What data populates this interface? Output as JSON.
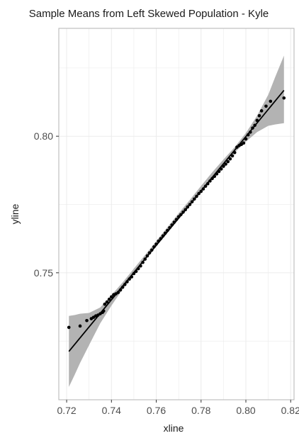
{
  "chart_data": {
    "type": "scatter",
    "title": "Sample Means from Left Skewed Population -  Kyle",
    "xlabel": "xline",
    "ylabel": "yline",
    "xlim": [
      0.7165,
      0.8215
    ],
    "ylim": [
      0.7035,
      0.8395
    ],
    "x_ticks": [
      0.72,
      0.74,
      0.76,
      0.78,
      0.8,
      0.82
    ],
    "x_tick_labels": [
      "0.72",
      "0.74",
      "0.76",
      "0.78",
      "0.80",
      "0.82"
    ],
    "y_ticks": [
      0.75,
      0.8
    ],
    "y_tick_labels": [
      "0.75",
      "0.80"
    ],
    "grid": true,
    "colors": {
      "points": "#000000",
      "fit_line": "#000000",
      "ribbon": "#b3b3b3",
      "grid": "#ebebeb",
      "panel_border": "#b3b3b3"
    },
    "fit_line": {
      "x": [
        0.721,
        0.817
      ],
      "y": [
        0.7212,
        0.8168
      ]
    },
    "ribbon": {
      "x": [
        0.721,
        0.7235,
        0.726,
        0.73,
        0.735,
        0.74,
        0.745,
        0.75,
        0.755,
        0.76,
        0.765,
        0.77,
        0.775,
        0.78,
        0.785,
        0.79,
        0.795,
        0.8,
        0.805,
        0.81,
        0.813,
        0.817
      ],
      "lower": [
        0.7082,
        0.7125,
        0.717,
        0.7235,
        0.7315,
        0.738,
        0.744,
        0.7495,
        0.755,
        0.7602,
        0.7653,
        0.7703,
        0.7752,
        0.7802,
        0.785,
        0.7897,
        0.794,
        0.798,
        0.8015,
        0.8038,
        0.8043,
        0.8048
      ],
      "upper": [
        0.7342,
        0.7345,
        0.735,
        0.7353,
        0.7373,
        0.7418,
        0.7465,
        0.7515,
        0.7565,
        0.7616,
        0.7667,
        0.7718,
        0.7767,
        0.7818,
        0.7868,
        0.7915,
        0.796,
        0.8012,
        0.8075,
        0.8152,
        0.8215,
        0.8295
      ]
    },
    "points": {
      "x": [
        0.721,
        0.726,
        0.729,
        0.731,
        0.732,
        0.733,
        0.734,
        0.735,
        0.736,
        0.7365,
        0.737,
        0.738,
        0.739,
        0.74,
        0.741,
        0.742,
        0.743,
        0.744,
        0.745,
        0.746,
        0.747,
        0.748,
        0.749,
        0.75,
        0.751,
        0.752,
        0.753,
        0.754,
        0.755,
        0.756,
        0.757,
        0.758,
        0.759,
        0.76,
        0.761,
        0.762,
        0.763,
        0.764,
        0.765,
        0.766,
        0.767,
        0.768,
        0.769,
        0.77,
        0.771,
        0.772,
        0.773,
        0.774,
        0.775,
        0.776,
        0.777,
        0.778,
        0.779,
        0.78,
        0.781,
        0.782,
        0.783,
        0.784,
        0.785,
        0.786,
        0.787,
        0.788,
        0.789,
        0.79,
        0.791,
        0.792,
        0.793,
        0.794,
        0.795,
        0.796,
        0.797,
        0.798,
        0.799,
        0.8,
        0.801,
        0.802,
        0.803,
        0.804,
        0.805,
        0.806,
        0.807,
        0.809,
        0.811,
        0.817
      ],
      "y": [
        0.73,
        0.7305,
        0.7325,
        0.7332,
        0.7337,
        0.7342,
        0.7345,
        0.735,
        0.7355,
        0.736,
        0.7385,
        0.7393,
        0.7403,
        0.7412,
        0.742,
        0.7423,
        0.7428,
        0.7437,
        0.7447,
        0.7457,
        0.7467,
        0.7477,
        0.7485,
        0.7497,
        0.7505,
        0.7515,
        0.7525,
        0.7538,
        0.755,
        0.7562,
        0.7573,
        0.7583,
        0.7595,
        0.7605,
        0.7616,
        0.7625,
        0.7635,
        0.7645,
        0.7655,
        0.7665,
        0.7675,
        0.7685,
        0.7695,
        0.7705,
        0.7713,
        0.7722,
        0.7731,
        0.7741,
        0.775,
        0.776,
        0.777,
        0.778,
        0.779,
        0.7798,
        0.7807,
        0.7817,
        0.7826,
        0.7836,
        0.7845,
        0.7853,
        0.7862,
        0.7871,
        0.788,
        0.789,
        0.7898,
        0.7907,
        0.7917,
        0.7928,
        0.794,
        0.796,
        0.7966,
        0.797,
        0.7975,
        0.799,
        0.8005,
        0.8015,
        0.803,
        0.804,
        0.8058,
        0.8075,
        0.8093,
        0.811,
        0.8128,
        0.814
      ]
    }
  }
}
